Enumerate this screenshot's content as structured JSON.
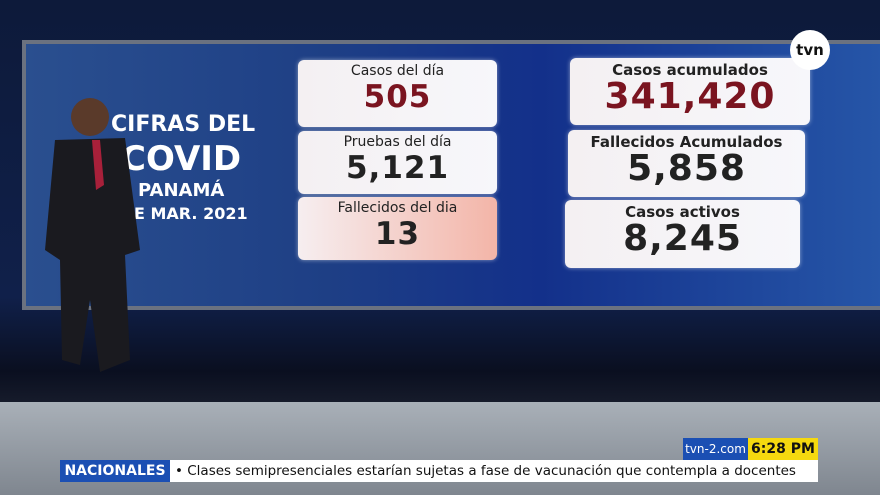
{
  "logo": "tvn",
  "wall_title": [
    "CIFRAS DEL",
    "COVID",
    "PANAMÁ",
    "E MAR. 2021"
  ],
  "stats": [
    {
      "label": "Casos del día",
      "value": "505"
    },
    {
      "label": "Pruebas del día",
      "value": "5,121"
    },
    {
      "label": "Fallecidos del dia",
      "value": "13"
    },
    {
      "label": "Casos acumulados",
      "value": "341,420"
    },
    {
      "label": "Fallecidos Acumulados",
      "value": "5,858"
    },
    {
      "label": "Casos activos",
      "value": "8,245"
    }
  ],
  "ticker": {
    "section": "NACIONALES",
    "headline": "• Clases semipresenciales estarían sujetas a fase de vacunación que contempla a docentes",
    "site": "tvn-2.com",
    "time": "6:28 PM"
  }
}
